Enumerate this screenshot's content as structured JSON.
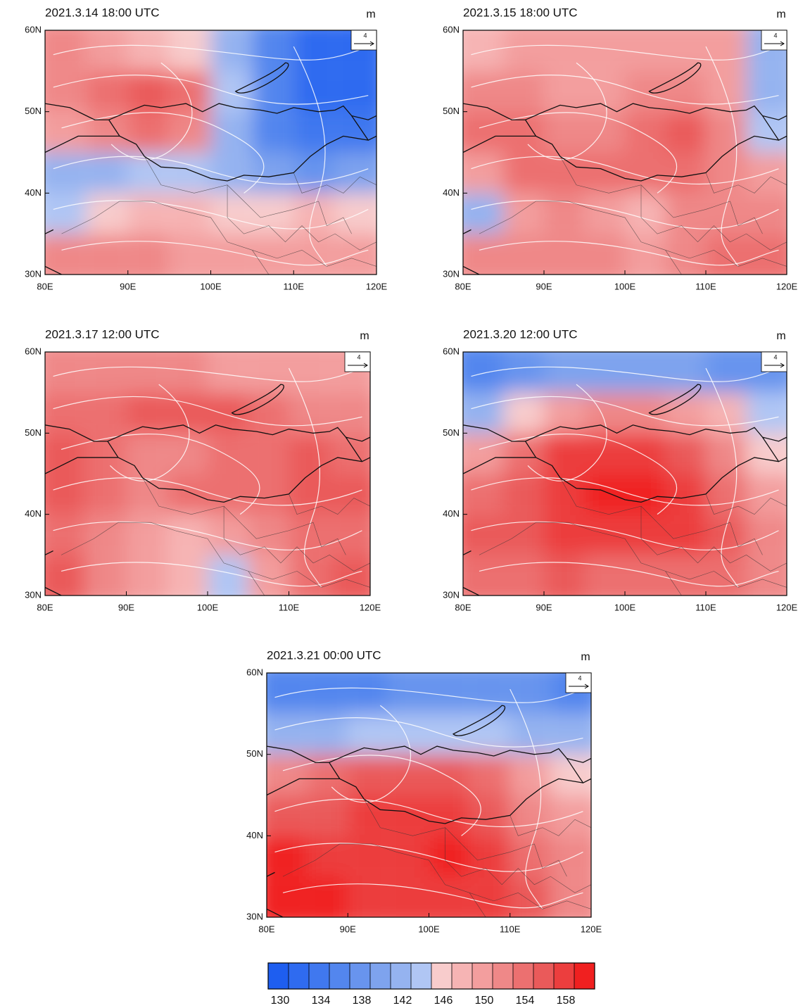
{
  "panels": [
    {
      "title": "2021.3.14 18:00 UTC",
      "unit": "m",
      "ref_vector": "4",
      "field": [
        [
          150,
          148,
          146,
          144,
          140,
          134,
          130,
          130
        ],
        [
          150,
          152,
          154,
          152,
          142,
          134,
          130,
          130
        ],
        [
          148,
          150,
          152,
          150,
          140,
          134,
          132,
          132
        ],
        [
          140,
          140,
          142,
          142,
          140,
          138,
          136,
          138
        ],
        [
          142,
          144,
          146,
          146,
          144,
          144,
          146,
          144
        ],
        [
          150,
          150,
          150,
          148,
          148,
          148,
          148,
          148
        ]
      ]
    },
    {
      "title": "2021.3.15 18:00 UTC",
      "unit": "m",
      "ref_vector": "4",
      "field": [
        [
          146,
          148,
          148,
          148,
          148,
          148,
          148,
          140
        ],
        [
          150,
          150,
          148,
          148,
          150,
          150,
          148,
          140
        ],
        [
          152,
          152,
          150,
          150,
          152,
          154,
          150,
          142
        ],
        [
          148,
          152,
          152,
          152,
          152,
          152,
          150,
          148
        ],
        [
          140,
          148,
          150,
          148,
          146,
          150,
          150,
          150
        ],
        [
          150,
          150,
          150,
          150,
          148,
          150,
          152,
          152
        ]
      ]
    },
    {
      "title": "2021.3.17 12:00 UTC",
      "unit": "m",
      "ref_vector": "4",
      "field": [
        [
          150,
          150,
          150,
          150,
          148,
          148,
          148,
          148
        ],
        [
          152,
          152,
          154,
          154,
          154,
          152,
          150,
          150
        ],
        [
          154,
          152,
          150,
          150,
          152,
          152,
          154,
          152
        ],
        [
          154,
          152,
          150,
          152,
          152,
          152,
          154,
          154
        ],
        [
          152,
          150,
          148,
          146,
          148,
          150,
          152,
          152
        ],
        [
          154,
          150,
          148,
          146,
          142,
          148,
          152,
          154
        ]
      ]
    },
    {
      "title": "2021.3.20 12:00 UTC",
      "unit": "m",
      "ref_vector": "4",
      "field": [
        [
          134,
          136,
          138,
          138,
          138,
          138,
          136,
          136
        ],
        [
          140,
          144,
          148,
          150,
          150,
          148,
          146,
          142
        ],
        [
          148,
          152,
          156,
          156,
          156,
          154,
          150,
          144
        ],
        [
          152,
          154,
          156,
          158,
          158,
          156,
          152,
          148
        ],
        [
          154,
          154,
          156,
          156,
          156,
          156,
          154,
          150
        ],
        [
          152,
          152,
          154,
          152,
          152,
          152,
          152,
          150
        ]
      ]
    },
    {
      "title": "2021.3.21 00:00 UTC",
      "unit": "m",
      "ref_vector": "4",
      "field": [
        [
          134,
          134,
          134,
          136,
          136,
          136,
          136,
          134
        ],
        [
          140,
          140,
          142,
          142,
          142,
          142,
          140,
          140
        ],
        [
          150,
          152,
          154,
          154,
          154,
          152,
          148,
          144
        ],
        [
          154,
          154,
          156,
          156,
          156,
          154,
          150,
          148
        ],
        [
          158,
          156,
          156,
          156,
          158,
          156,
          152,
          150
        ],
        [
          160,
          158,
          156,
          156,
          156,
          156,
          154,
          150
        ]
      ]
    }
  ],
  "grid_lat": [
    57.5,
    52.5,
    47.5,
    42.5,
    37.5,
    32.5
  ],
  "grid_lon": [
    82.5,
    87.5,
    92.5,
    97.5,
    102.5,
    107.5,
    112.5,
    117.5
  ],
  "latlim": [
    30,
    60
  ],
  "lonlim": [
    80,
    120
  ],
  "lat_ticks": [
    {
      "value": 60,
      "label": "60N"
    },
    {
      "value": 50,
      "label": "50N"
    },
    {
      "value": 40,
      "label": "40N"
    },
    {
      "value": 30,
      "label": "30N"
    }
  ],
  "lon_ticks": [
    {
      "value": 80,
      "label": "80E"
    },
    {
      "value": 90,
      "label": "90E"
    },
    {
      "value": 100,
      "label": "100E"
    },
    {
      "value": 110,
      "label": "110E"
    },
    {
      "value": 120,
      "label": "120E"
    }
  ],
  "colorbar": {
    "levels": [
      130,
      132,
      134,
      136,
      138,
      140,
      142,
      144,
      146,
      148,
      150,
      152,
      154,
      156,
      158
    ],
    "ticks": [
      130,
      134,
      138,
      142,
      146,
      150,
      154,
      158
    ],
    "colors": [
      "#1e5ef0",
      "#2f6bf0",
      "#4078ef",
      "#5386ee",
      "#6894ee",
      "#7ea3ee",
      "#95b3f0",
      "#b0c6f4",
      "#f8cccc",
      "#f6b4b4",
      "#f39e9e",
      "#ef8888",
      "#ec7070",
      "#ea5a5a",
      "#ec3e3e",
      "#f02020"
    ]
  }
}
